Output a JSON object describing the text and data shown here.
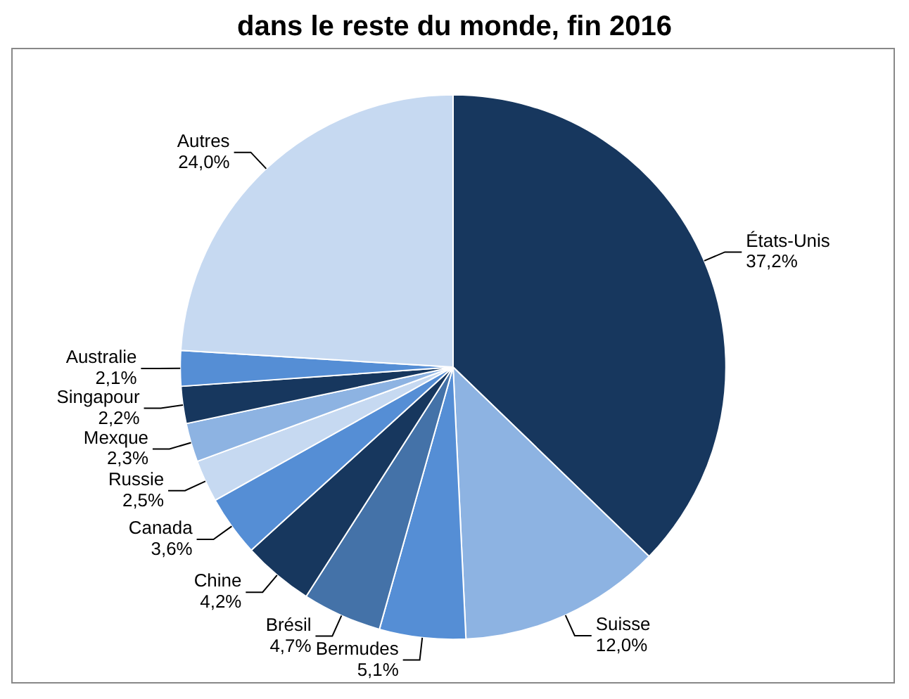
{
  "chart_data": {
    "type": "pie",
    "title": "dans le reste du monde, fin 2016",
    "categories": [
      "États-Unis",
      "Suisse",
      "Bermudes",
      "Brésil",
      "Chine",
      "Canada",
      "Russie",
      "Mexque",
      "Singapour",
      "Australie",
      "Autres"
    ],
    "values": [
      37.2,
      12.0,
      5.1,
      4.7,
      4.2,
      3.6,
      2.5,
      2.3,
      2.2,
      2.1,
      24.0
    ],
    "value_labels": [
      "37,2%",
      "12,0%",
      "5,1%",
      "4,7%",
      "4,2%",
      "3,6%",
      "2,5%",
      "2,3%",
      "2,2%",
      "2,1%",
      "24,0%"
    ],
    "colors": [
      "#17375e",
      "#8db3e2",
      "#558ed5",
      "#4472a8",
      "#17375e",
      "#558ed5",
      "#c6d9f1",
      "#8db3e2",
      "#17375e",
      "#558ed5",
      "#c6d9f1"
    ],
    "legend": false
  }
}
